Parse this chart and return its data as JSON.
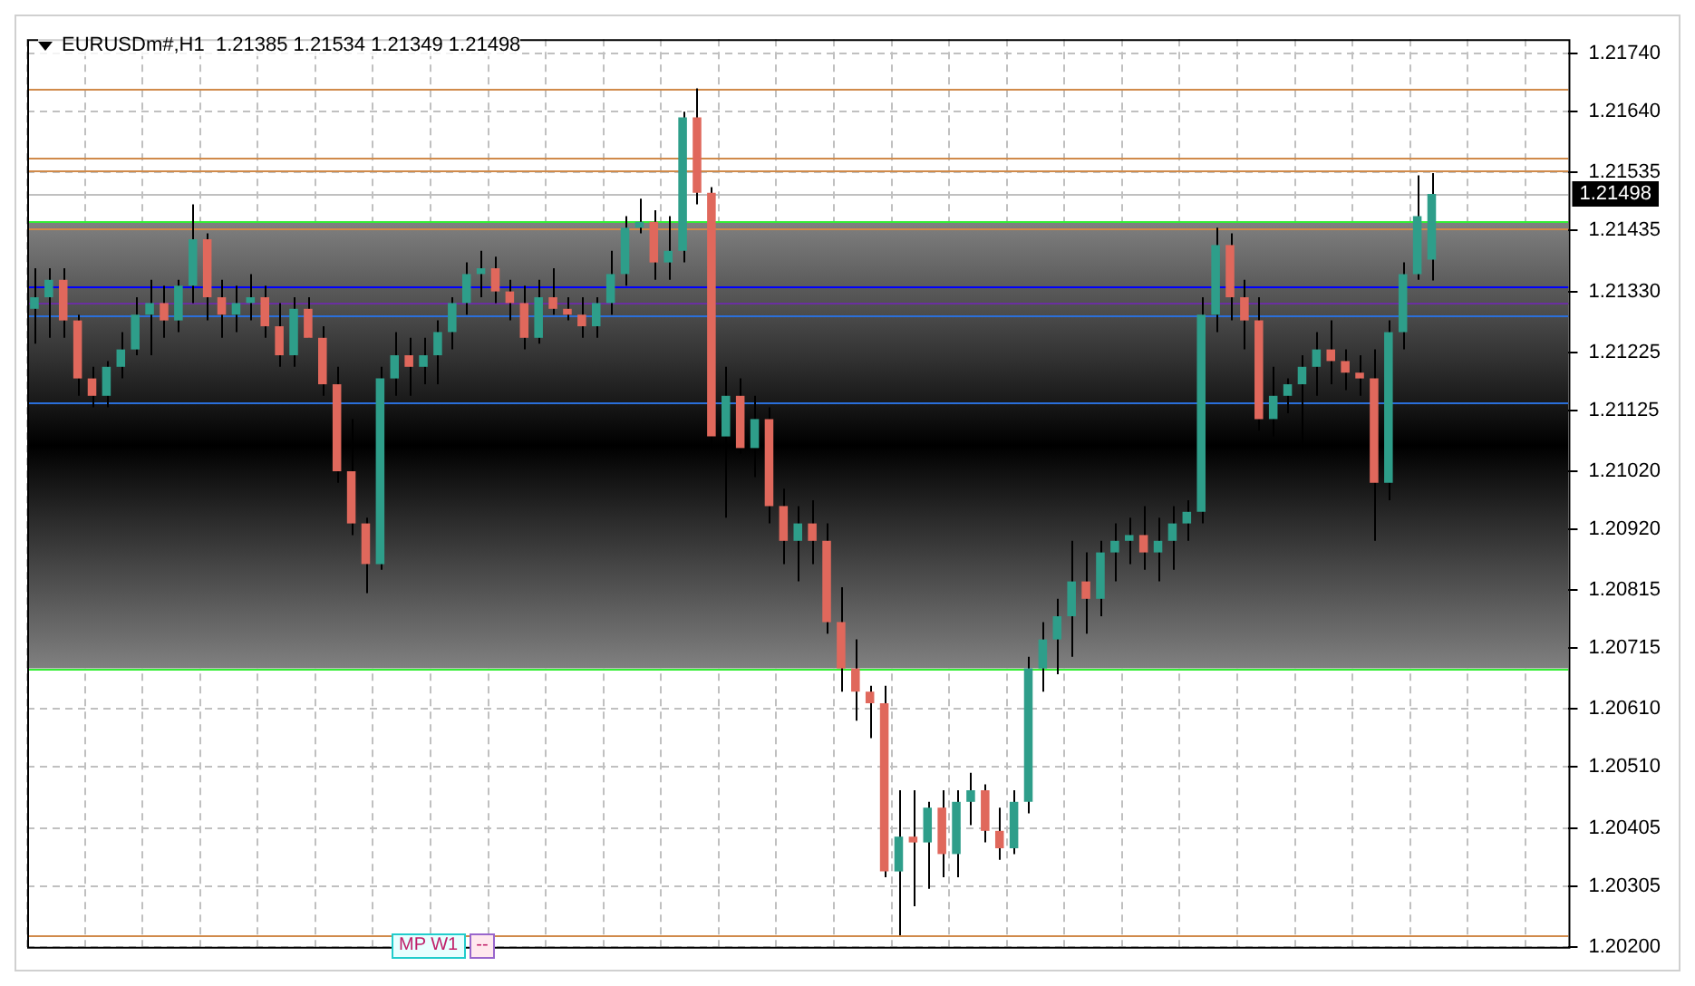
{
  "chart_data": {
    "type": "candlestick",
    "title": "EURUSDm#,H1  1.21385 1.21534 1.21349 1.21498",
    "categories": [
      null,
      null,
      null,
      null,
      null,
      null,
      null,
      null,
      null,
      null,
      null,
      null,
      null,
      null,
      null,
      null,
      null,
      null,
      null,
      null,
      null,
      null,
      null,
      null,
      null,
      null,
      null,
      null,
      null,
      null,
      null,
      null,
      null,
      null,
      null,
      null,
      null,
      null,
      null,
      null,
      null,
      null,
      null,
      null,
      null,
      null,
      null,
      null,
      null,
      null,
      null,
      null,
      null,
      null,
      null,
      null,
      null,
      null,
      null,
      null,
      null,
      null,
      null,
      null,
      null,
      null,
      null,
      null,
      null,
      null,
      null,
      null,
      null,
      null,
      null,
      null,
      null,
      null,
      null,
      null,
      null,
      null,
      null,
      null,
      null,
      null,
      null,
      null,
      null,
      null,
      null,
      null,
      null,
      null,
      null,
      null,
      null,
      null,
      null,
      null,
      null,
      null,
      null,
      null,
      null,
      null,
      null
    ],
    "ohlc": [
      [
        1.213,
        1.2137,
        1.2124,
        1.2132
      ],
      [
        1.2132,
        1.2137,
        1.2125,
        1.2135
      ],
      [
        1.2135,
        1.2137,
        1.2125,
        1.2128
      ],
      [
        1.2128,
        1.2129,
        1.2115,
        1.2118
      ],
      [
        1.2118,
        1.212,
        1.2113,
        1.2115
      ],
      [
        1.2115,
        1.2121,
        1.2113,
        1.212
      ],
      [
        1.212,
        1.2126,
        1.2118,
        1.2123
      ],
      [
        1.2123,
        1.2132,
        1.2122,
        1.2129
      ],
      [
        1.2129,
        1.2135,
        1.2122,
        1.2131
      ],
      [
        1.2131,
        1.2134,
        1.2125,
        1.2128
      ],
      [
        1.2128,
        1.2135,
        1.2126,
        1.2134
      ],
      [
        1.2134,
        1.2148,
        1.2131,
        1.2142
      ],
      [
        1.2142,
        1.2143,
        1.2128,
        1.2132
      ],
      [
        1.2132,
        1.2135,
        1.2125,
        1.2129
      ],
      [
        1.2129,
        1.2134,
        1.2126,
        1.2131
      ],
      [
        1.2131,
        1.2136,
        1.2128,
        1.2132
      ],
      [
        1.2132,
        1.2134,
        1.2125,
        1.2127
      ],
      [
        1.2127,
        1.2131,
        1.212,
        1.2122
      ],
      [
        1.2122,
        1.2132,
        1.212,
        1.213
      ],
      [
        1.213,
        1.2132,
        1.2125,
        1.2125
      ],
      [
        1.2125,
        1.2127,
        1.2115,
        1.2117
      ],
      [
        1.2117,
        1.212,
        1.21,
        1.2102
      ],
      [
        1.2102,
        1.2111,
        1.2091,
        1.2093
      ],
      [
        1.2093,
        1.2094,
        1.2081,
        1.2086
      ],
      [
        1.2086,
        1.212,
        1.2085,
        1.2118
      ],
      [
        1.2118,
        1.2126,
        1.2115,
        1.2122
      ],
      [
        1.2122,
        1.2125,
        1.2115,
        1.212
      ],
      [
        1.212,
        1.2125,
        1.2117,
        1.2122
      ],
      [
        1.2122,
        1.2128,
        1.2117,
        1.2126
      ],
      [
        1.2126,
        1.2132,
        1.2123,
        1.2131
      ],
      [
        1.2131,
        1.2138,
        1.2129,
        1.2136
      ],
      [
        1.2136,
        1.214,
        1.2132,
        1.2137
      ],
      [
        1.2137,
        1.2139,
        1.2131,
        1.2133
      ],
      [
        1.2133,
        1.2135,
        1.2128,
        1.2131
      ],
      [
        1.2131,
        1.2134,
        1.2123,
        1.2125
      ],
      [
        1.2125,
        1.2135,
        1.2124,
        1.2132
      ],
      [
        1.2132,
        1.2137,
        1.2129,
        1.213
      ],
      [
        1.213,
        1.2132,
        1.2128,
        1.2129
      ],
      [
        1.2129,
        1.2132,
        1.2125,
        1.2127
      ],
      [
        1.2127,
        1.2132,
        1.2125,
        1.2131
      ],
      [
        1.2131,
        1.214,
        1.2129,
        1.2136
      ],
      [
        1.2136,
        1.2146,
        1.2134,
        1.2144
      ],
      [
        1.2144,
        1.2149,
        1.2143,
        1.2145
      ],
      [
        1.2145,
        1.2147,
        1.2135,
        1.2138
      ],
      [
        1.2138,
        1.2146,
        1.2135,
        1.214
      ],
      [
        1.214,
        1.2164,
        1.2138,
        1.2163
      ],
      [
        1.2163,
        1.2168,
        1.2148,
        1.215
      ],
      [
        1.215,
        1.2151,
        1.2106,
        1.2108
      ],
      [
        1.2108,
        1.212,
        1.2094,
        1.2115
      ],
      [
        1.2115,
        1.2118,
        1.2105,
        1.2106
      ],
      [
        1.2106,
        1.2115,
        1.2101,
        1.2111
      ],
      [
        1.2111,
        1.2113,
        1.2093,
        1.2096
      ],
      [
        1.2096,
        1.2099,
        1.2086,
        1.209
      ],
      [
        1.209,
        1.2096,
        1.2083,
        1.2093
      ],
      [
        1.2093,
        1.2097,
        1.2086,
        1.209
      ],
      [
        1.209,
        1.2093,
        1.2074,
        1.2076
      ],
      [
        1.2076,
        1.2082,
        1.2064,
        1.2068
      ],
      [
        1.2068,
        1.2073,
        1.2059,
        1.2064
      ],
      [
        1.2064,
        1.2065,
        1.2056,
        1.2062
      ],
      [
        1.2062,
        1.2065,
        1.2032,
        1.2033
      ],
      [
        1.2033,
        1.2047,
        1.2022,
        1.2039
      ],
      [
        1.2039,
        1.2047,
        1.2027,
        1.2038
      ],
      [
        1.2038,
        1.2045,
        1.203,
        1.2044
      ],
      [
        1.2044,
        1.2047,
        1.2032,
        1.2036
      ],
      [
        1.2036,
        1.2047,
        1.2032,
        1.2045
      ],
      [
        1.2045,
        1.205,
        1.2041,
        1.2047
      ],
      [
        1.2047,
        1.2048,
        1.2038,
        1.204
      ],
      [
        1.204,
        1.2044,
        1.2035,
        1.2037
      ],
      [
        1.2037,
        1.2047,
        1.2036,
        1.2045
      ],
      [
        1.2045,
        1.207,
        1.2043,
        1.2068
      ],
      [
        1.2068,
        1.2076,
        1.2064,
        1.2073
      ],
      [
        1.2073,
        1.208,
        1.2067,
        1.2077
      ],
      [
        1.2077,
        1.209,
        1.207,
        1.2083
      ],
      [
        1.2083,
        1.2088,
        1.2074,
        1.208
      ],
      [
        1.208,
        1.209,
        1.2077,
        1.2088
      ],
      [
        1.2088,
        1.2093,
        1.2083,
        1.209
      ],
      [
        1.209,
        1.2094,
        1.2086,
        1.2091
      ],
      [
        1.2091,
        1.2096,
        1.2085,
        1.2088
      ],
      [
        1.2088,
        1.2094,
        1.2083,
        1.209
      ],
      [
        1.209,
        1.2096,
        1.2085,
        1.2093
      ],
      [
        1.2093,
        1.2097,
        1.209,
        1.2095
      ],
      [
        1.2095,
        1.2132,
        1.2093,
        1.2129
      ],
      [
        1.2129,
        1.2144,
        1.2126,
        1.2141
      ],
      [
        1.2141,
        1.2143,
        1.2128,
        1.2132
      ],
      [
        1.2132,
        1.2135,
        1.2123,
        1.2128
      ],
      [
        1.2128,
        1.2132,
        1.2109,
        1.2111
      ],
      [
        1.2111,
        1.212,
        1.2108,
        1.2115
      ],
      [
        1.2115,
        1.2118,
        1.2112,
        1.2117
      ],
      [
        1.2117,
        1.2122,
        1.2106,
        1.212
      ],
      [
        1.212,
        1.2126,
        1.2115,
        1.2123
      ],
      [
        1.2123,
        1.2128,
        1.2117,
        1.2121
      ],
      [
        1.2121,
        1.2123,
        1.2116,
        1.2119
      ],
      [
        1.2119,
        1.2122,
        1.2115,
        1.2118
      ],
      [
        1.2118,
        1.2123,
        1.209,
        1.21
      ],
      [
        1.21,
        1.2128,
        1.2097,
        1.2126
      ],
      [
        1.2126,
        1.2138,
        1.2123,
        1.2136
      ],
      [
        1.2136,
        1.2153,
        1.2135,
        1.2146
      ],
      [
        1.21385,
        1.21534,
        1.21349,
        1.21498
      ],
      null,
      null,
      null,
      null,
      null,
      null,
      null,
      null,
      null
    ],
    "ylim": [
      1.202,
      1.21765
    ],
    "yticks": [
      {
        "value": 1.2174,
        "label": "1.21740"
      },
      {
        "value": 1.2164,
        "label": "1.21640"
      },
      {
        "value": 1.21535,
        "label": "1.21535"
      },
      {
        "value": 1.21435,
        "label": "1.21435"
      },
      {
        "value": 1.2133,
        "label": "1.21330"
      },
      {
        "value": 1.21225,
        "label": "1.21225"
      },
      {
        "value": 1.21125,
        "label": "1.21125"
      },
      {
        "value": 1.2102,
        "label": "1.21020"
      },
      {
        "value": 1.2092,
        "label": "1.20920"
      },
      {
        "value": 1.20815,
        "label": "1.20815"
      },
      {
        "value": 1.20715,
        "label": "1.20715"
      },
      {
        "value": 1.2061,
        "label": "1.20610"
      },
      {
        "value": 1.2051,
        "label": "1.20510"
      },
      {
        "value": 1.20405,
        "label": "1.20405"
      },
      {
        "value": 1.20305,
        "label": "1.20305"
      },
      {
        "value": 1.202,
        "label": "1.20200"
      }
    ],
    "grid": true,
    "tick_labels": "y",
    "bands": [
      {
        "axis": "y",
        "from": 1.2068,
        "to": 1.2145,
        "color": "#808080"
      }
    ],
    "ref_lines": [
      {
        "axis": "y",
        "value": 1.2168,
        "color": "#d08a4a"
      },
      {
        "axis": "y",
        "value": 1.2156,
        "color": "#d08a4a"
      },
      {
        "axis": "y",
        "value": 1.2154,
        "color": "#d08a4a"
      },
      {
        "axis": "y",
        "value": 1.21498,
        "label": "1.21498",
        "color": "#c0c0c0"
      },
      {
        "axis": "y",
        "value": 1.2144,
        "color": "#d08a4a"
      },
      {
        "axis": "y",
        "value": 1.2145,
        "color": "#33ee33"
      },
      {
        "axis": "y",
        "value": 1.2068,
        "color": "#33ee33"
      },
      {
        "axis": "y",
        "value": 1.2134,
        "color": "#0000ff"
      },
      {
        "axis": "y",
        "value": 1.2131,
        "color": "#6a2fa0"
      },
      {
        "axis": "y",
        "value": 1.2129,
        "color": "#2a6fdb"
      },
      {
        "axis": "y",
        "value": 1.2114,
        "color": "#2a6fdb"
      },
      {
        "axis": "y",
        "value": 1.2022,
        "color": "#d08a4a"
      }
    ],
    "annotations": [
      "MP W1",
      "--"
    ]
  }
}
